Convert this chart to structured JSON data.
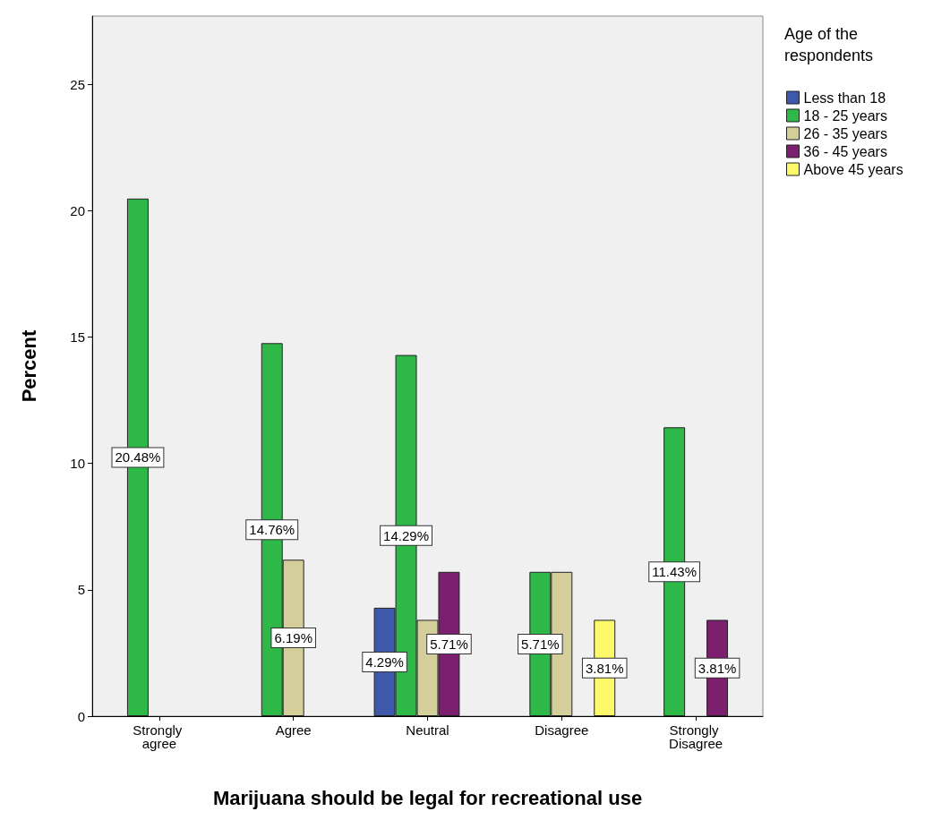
{
  "chart_data": {
    "type": "bar",
    "xlabel": "Marijuana should be legal for recreational use",
    "ylabel": "Percent",
    "legend_title": "Age of the respondents",
    "categories": [
      "Strongly agree",
      "Agree",
      "Neutral",
      "Disagree",
      "Strongly Disagree"
    ],
    "series": [
      {
        "name": "Less than 18",
        "color": "#3e58ac",
        "values": [
          null,
          null,
          4.29,
          null,
          null
        ],
        "value_labels": [
          null,
          null,
          "4.29%",
          null,
          null
        ]
      },
      {
        "name": "18 - 25 years",
        "color": "#2eb848",
        "values": [
          20.48,
          14.76,
          14.29,
          5.71,
          11.43
        ],
        "value_labels": [
          "20.48%",
          "14.76%",
          "14.29%",
          "5.71%",
          "11.43%"
        ]
      },
      {
        "name": "26 - 35 years",
        "color": "#d3ce9a",
        "values": [
          null,
          6.19,
          3.81,
          5.71,
          null
        ],
        "value_labels": [
          null,
          "6.19%",
          null,
          null,
          null
        ]
      },
      {
        "name": "36 - 45 years",
        "color": "#7b1f6e",
        "values": [
          null,
          null,
          5.71,
          null,
          3.81
        ],
        "value_labels": [
          null,
          null,
          "5.71%",
          null,
          "3.81%"
        ]
      },
      {
        "name": "Above 45 years",
        "color": "#fbf96a",
        "values": [
          null,
          null,
          null,
          3.81,
          null
        ],
        "value_labels": [
          null,
          null,
          null,
          "3.81%",
          null
        ]
      }
    ],
    "ylim": [
      0,
      27.7
    ],
    "yticks": [
      0,
      5,
      10,
      15,
      20,
      25
    ],
    "grid": false,
    "legend": "right"
  }
}
